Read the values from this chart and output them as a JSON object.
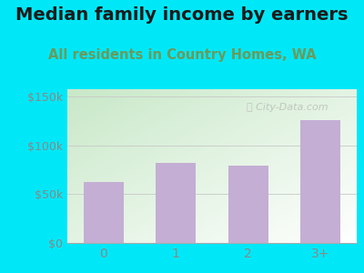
{
  "title": "Median family income by earners",
  "subtitle": "All residents in Country Homes, WA",
  "categories": [
    "0",
    "1",
    "2",
    "3+"
  ],
  "values": [
    62000,
    82000,
    79000,
    126000
  ],
  "bar_color": "#c4aed4",
  "bar_edge_color": "#c4aed4",
  "title_color": "#1a1a1a",
  "subtitle_color": "#6a9a5a",
  "tick_color": "#888888",
  "ytick_labels": [
    "$0",
    "$50k",
    "$100k",
    "$150k"
  ],
  "ytick_values": [
    0,
    50000,
    100000,
    150000
  ],
  "ylim": [
    0,
    158000
  ],
  "background_outer": "#00e8f8",
  "grad_top_left": "#c8e8c8",
  "grad_bottom_right": "#f0f8f0",
  "watermark": "ⓘ City-Data.com",
  "title_fontsize": 14,
  "subtitle_fontsize": 10.5
}
